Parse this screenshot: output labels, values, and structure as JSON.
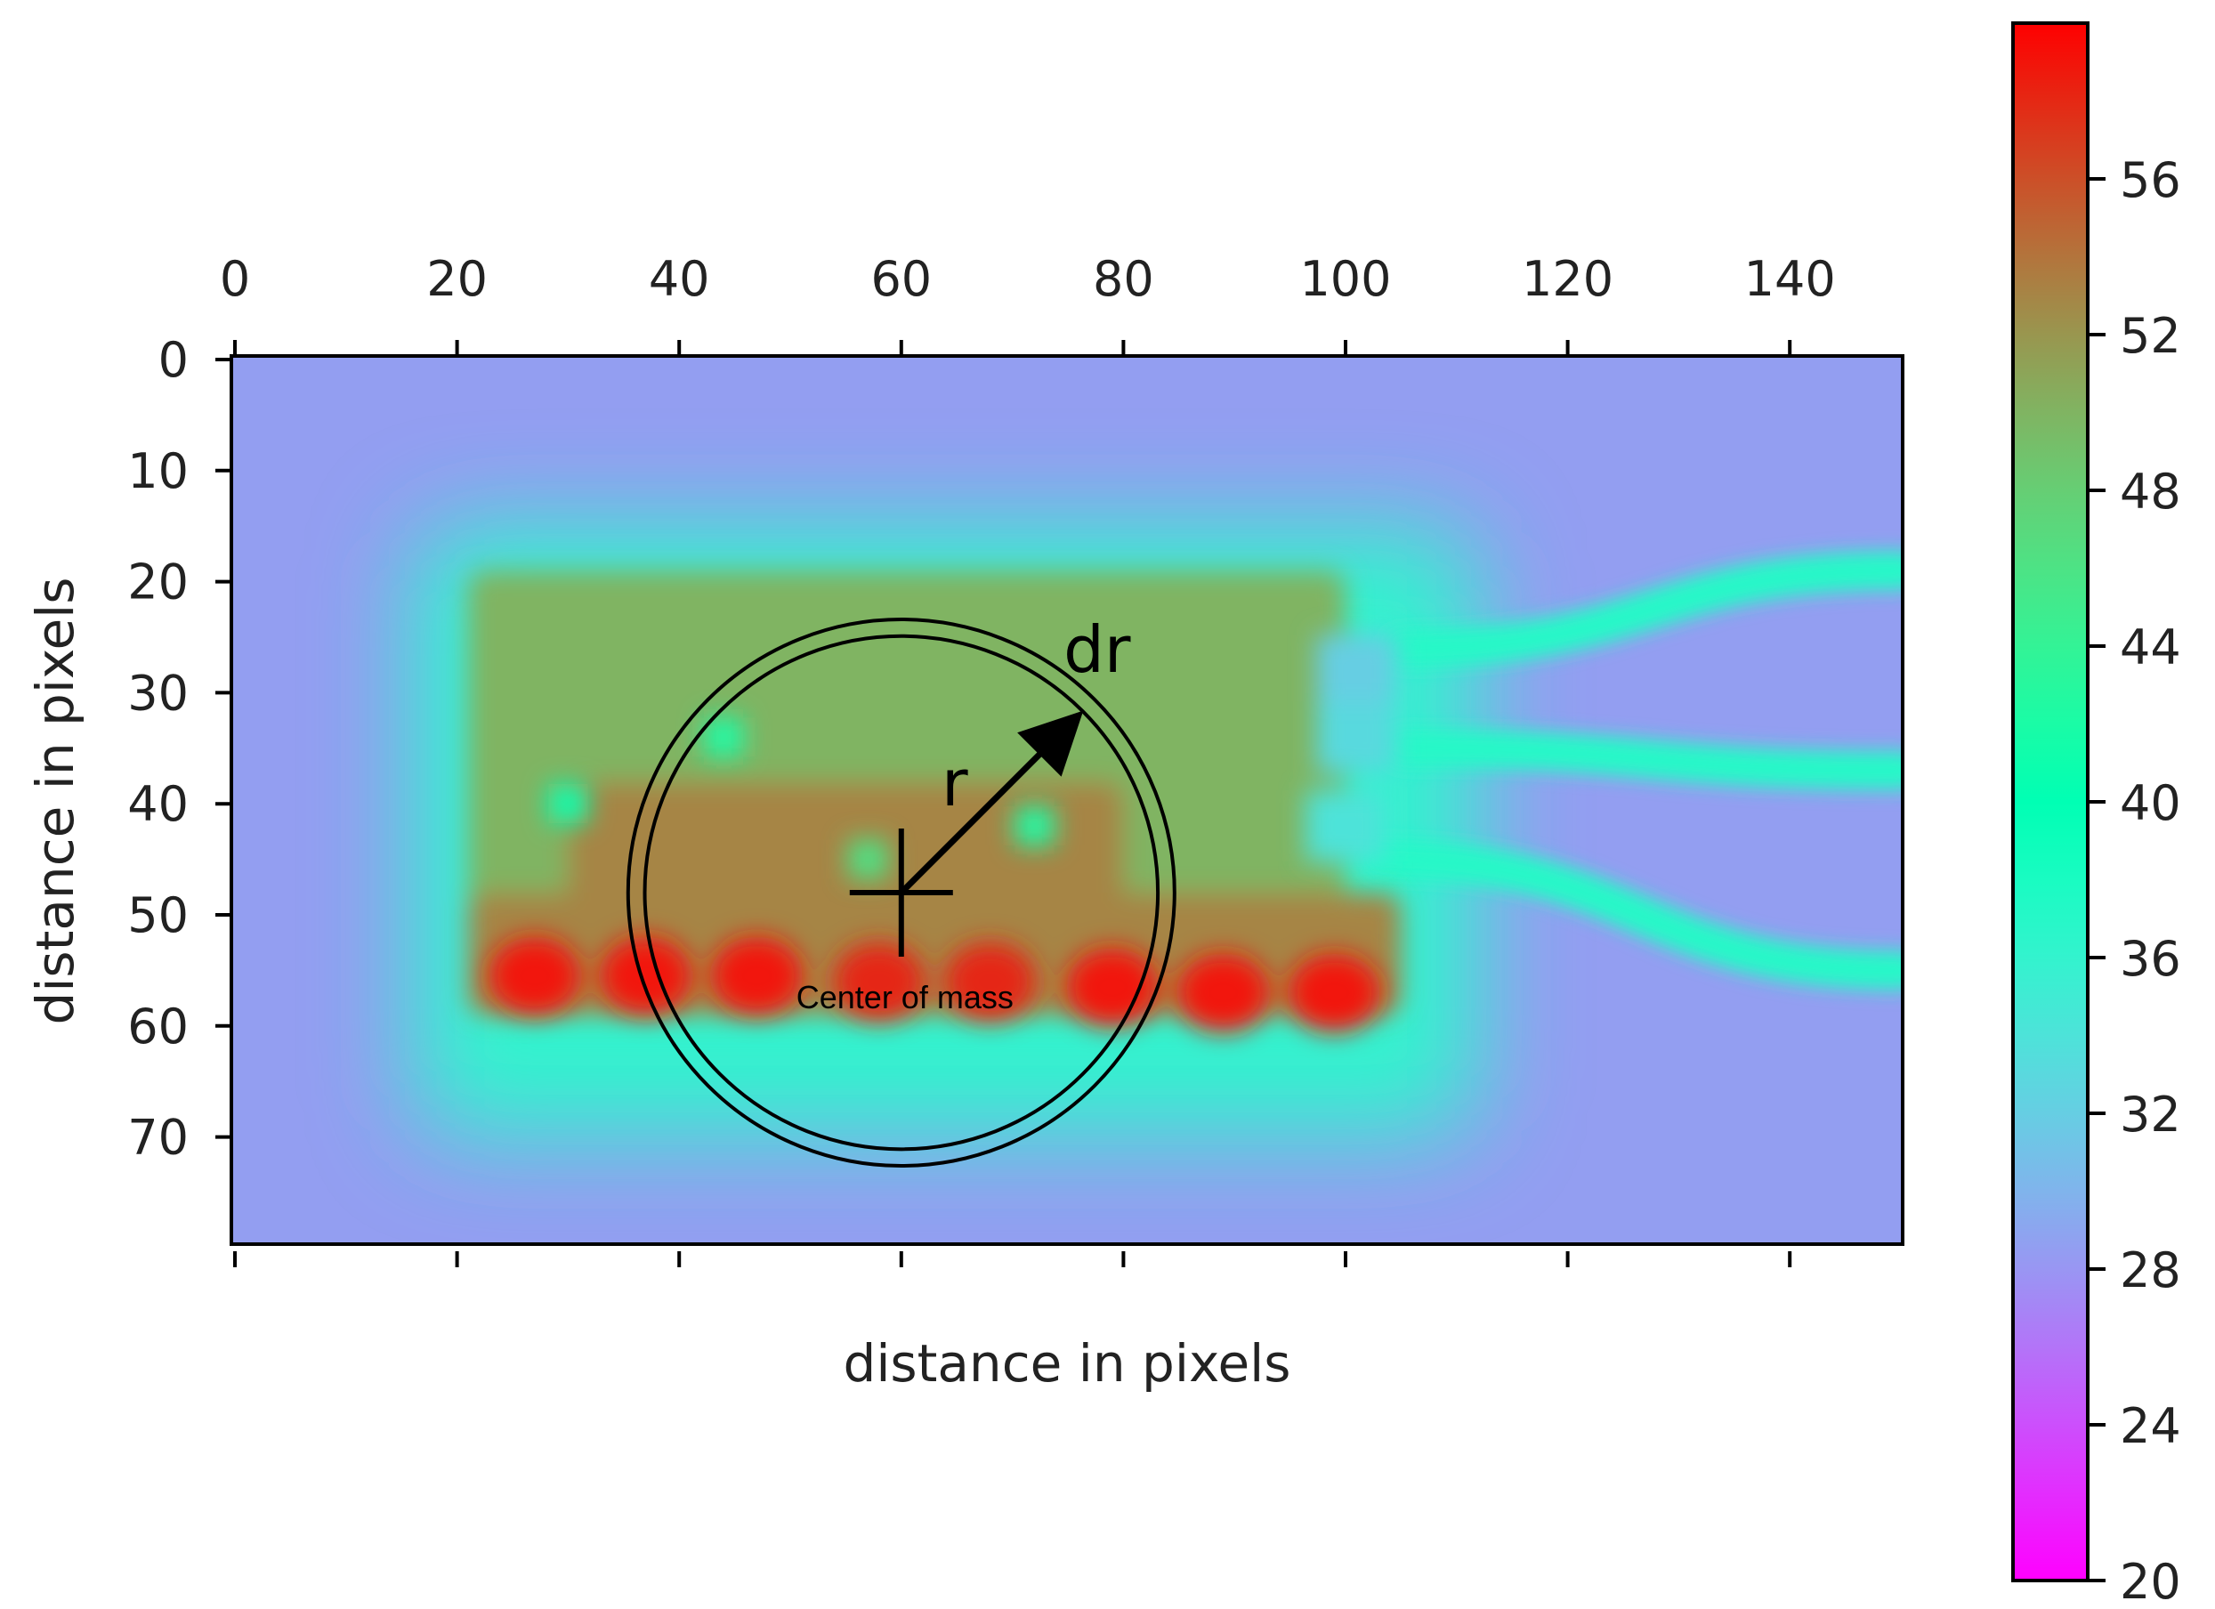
{
  "chart_data": {
    "type": "heatmap",
    "title": "",
    "xlabel": "distance in pixels",
    "ylabel": "distance in pixels",
    "xlim": [
      0,
      150
    ],
    "ylim": [
      80,
      0
    ],
    "x_ticks": [
      "0",
      "20",
      "40",
      "60",
      "80",
      "100",
      "120",
      "140"
    ],
    "y_ticks": [
      "0",
      "10",
      "20",
      "30",
      "40",
      "50",
      "60",
      "70"
    ],
    "x_tick_values": [
      0,
      20,
      40,
      60,
      80,
      100,
      120,
      140
    ],
    "y_tick_values": [
      0,
      10,
      20,
      30,
      40,
      50,
      60,
      70
    ],
    "colormap": "rainbow",
    "colorbar": {
      "min": 20,
      "max": 60,
      "ticks": [
        "20",
        "24",
        "28",
        "32",
        "36",
        "40",
        "44",
        "48",
        "52",
        "56"
      ],
      "tick_values": [
        20,
        24,
        28,
        32,
        36,
        40,
        44,
        48,
        52,
        56
      ]
    },
    "background_value": 28.5,
    "regions": [
      {
        "shape": "rect",
        "x0": 21,
        "x1": 100,
        "y0": 19,
        "y1": 59,
        "value": 50
      },
      {
        "shape": "rect",
        "x0": 21,
        "x1": 105,
        "y0": 48,
        "y1": 59,
        "value": 53
      },
      {
        "shape": "rect",
        "x0": 30,
        "x1": 80,
        "y0": 38,
        "y1": 54,
        "value": 53
      }
    ],
    "hot_spots": [
      {
        "x": 27,
        "y": 55.5,
        "value": 59
      },
      {
        "x": 37,
        "y": 55.5,
        "value": 59
      },
      {
        "x": 47,
        "y": 55.5,
        "value": 59
      },
      {
        "x": 58,
        "y": 56,
        "value": 58
      },
      {
        "x": 68,
        "y": 56,
        "value": 58
      },
      {
        "x": 79,
        "y": 56.5,
        "value": 59
      },
      {
        "x": 89,
        "y": 57,
        "value": 59
      },
      {
        "x": 99,
        "y": 57,
        "value": 59
      }
    ],
    "cool_patches": [
      {
        "x": 101,
        "y": 28,
        "value": 32
      },
      {
        "x": 101,
        "y": 34,
        "value": 33
      },
      {
        "x": 100,
        "y": 42,
        "value": 34
      }
    ],
    "warm_patches": [
      {
        "x": 30,
        "y": 40,
        "value": 41
      },
      {
        "x": 44,
        "y": 34,
        "value": 42
      },
      {
        "x": 72,
        "y": 42,
        "value": 42
      },
      {
        "x": 57,
        "y": 45,
        "value": 46
      }
    ],
    "wires": [
      {
        "x0": 105,
        "y0": 26,
        "x1": 150,
        "y1": 19
      },
      {
        "x0": 105,
        "y0": 35,
        "x1": 150,
        "y1": 37
      },
      {
        "x0": 103,
        "y0": 45,
        "x1": 150,
        "y1": 55
      }
    ],
    "annotations": {
      "center_label": "Center of mass",
      "radius_label": "r",
      "shell_label": "dr",
      "center": {
        "x": 60,
        "y": 48
      },
      "radius": 22,
      "shell_width": 1.5
    }
  }
}
